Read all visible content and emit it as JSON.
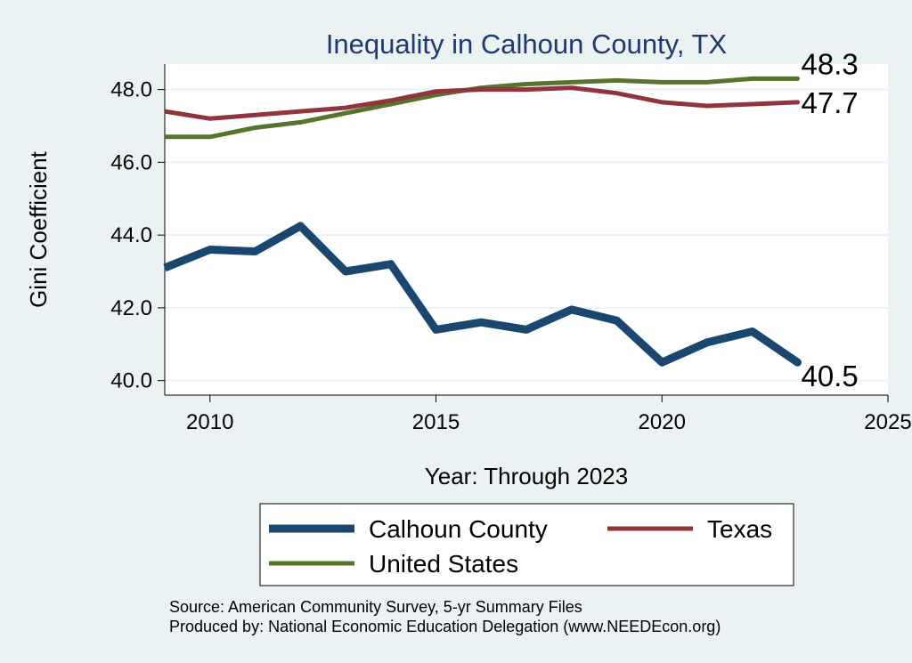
{
  "chart_data": {
    "type": "line",
    "title": "Inequality in Calhoun County, TX",
    "xlabel": "Year: Through 2023",
    "ylabel": "Gini Coefficient",
    "xlim": [
      2009,
      2025
    ],
    "ylim": [
      39.6,
      48.7
    ],
    "x_ticks": [
      2010,
      2015,
      2020,
      2025
    ],
    "y_ticks": [
      40,
      42,
      44,
      46,
      48
    ],
    "y_tick_labels": [
      "40.0",
      "42.0",
      "44.0",
      "46.0",
      "48.0"
    ],
    "grid": "horizontal",
    "legend_position": "bottom",
    "x": [
      2009,
      2010,
      2011,
      2012,
      2013,
      2014,
      2015,
      2016,
      2017,
      2018,
      2019,
      2020,
      2021,
      2022,
      2023
    ],
    "series": [
      {
        "name": "Calhoun County",
        "color": "#1a476f",
        "values": [
          43.1,
          43.6,
          43.55,
          44.25,
          43.0,
          43.2,
          41.4,
          41.6,
          41.4,
          41.95,
          41.65,
          40.5,
          41.05,
          41.35,
          40.5
        ],
        "end_label": "40.5"
      },
      {
        "name": "Texas",
        "color": "#90353b",
        "values": [
          47.4,
          47.2,
          47.3,
          47.4,
          47.5,
          47.7,
          47.95,
          48.0,
          48.0,
          48.05,
          47.9,
          47.65,
          47.55,
          47.6,
          47.65
        ],
        "end_label": "47.7"
      },
      {
        "name": "United States",
        "color": "#55752f",
        "values": [
          46.7,
          46.7,
          46.95,
          47.1,
          47.35,
          47.6,
          47.85,
          48.05,
          48.15,
          48.2,
          48.25,
          48.2,
          48.2,
          48.3,
          48.3
        ],
        "end_label": "48.3"
      }
    ],
    "notes": [
      "Source: American Community Survey, 5-yr Summary Files",
      "Produced by: National Economic Education Delegation (www.NEEDEcon.org)"
    ]
  }
}
